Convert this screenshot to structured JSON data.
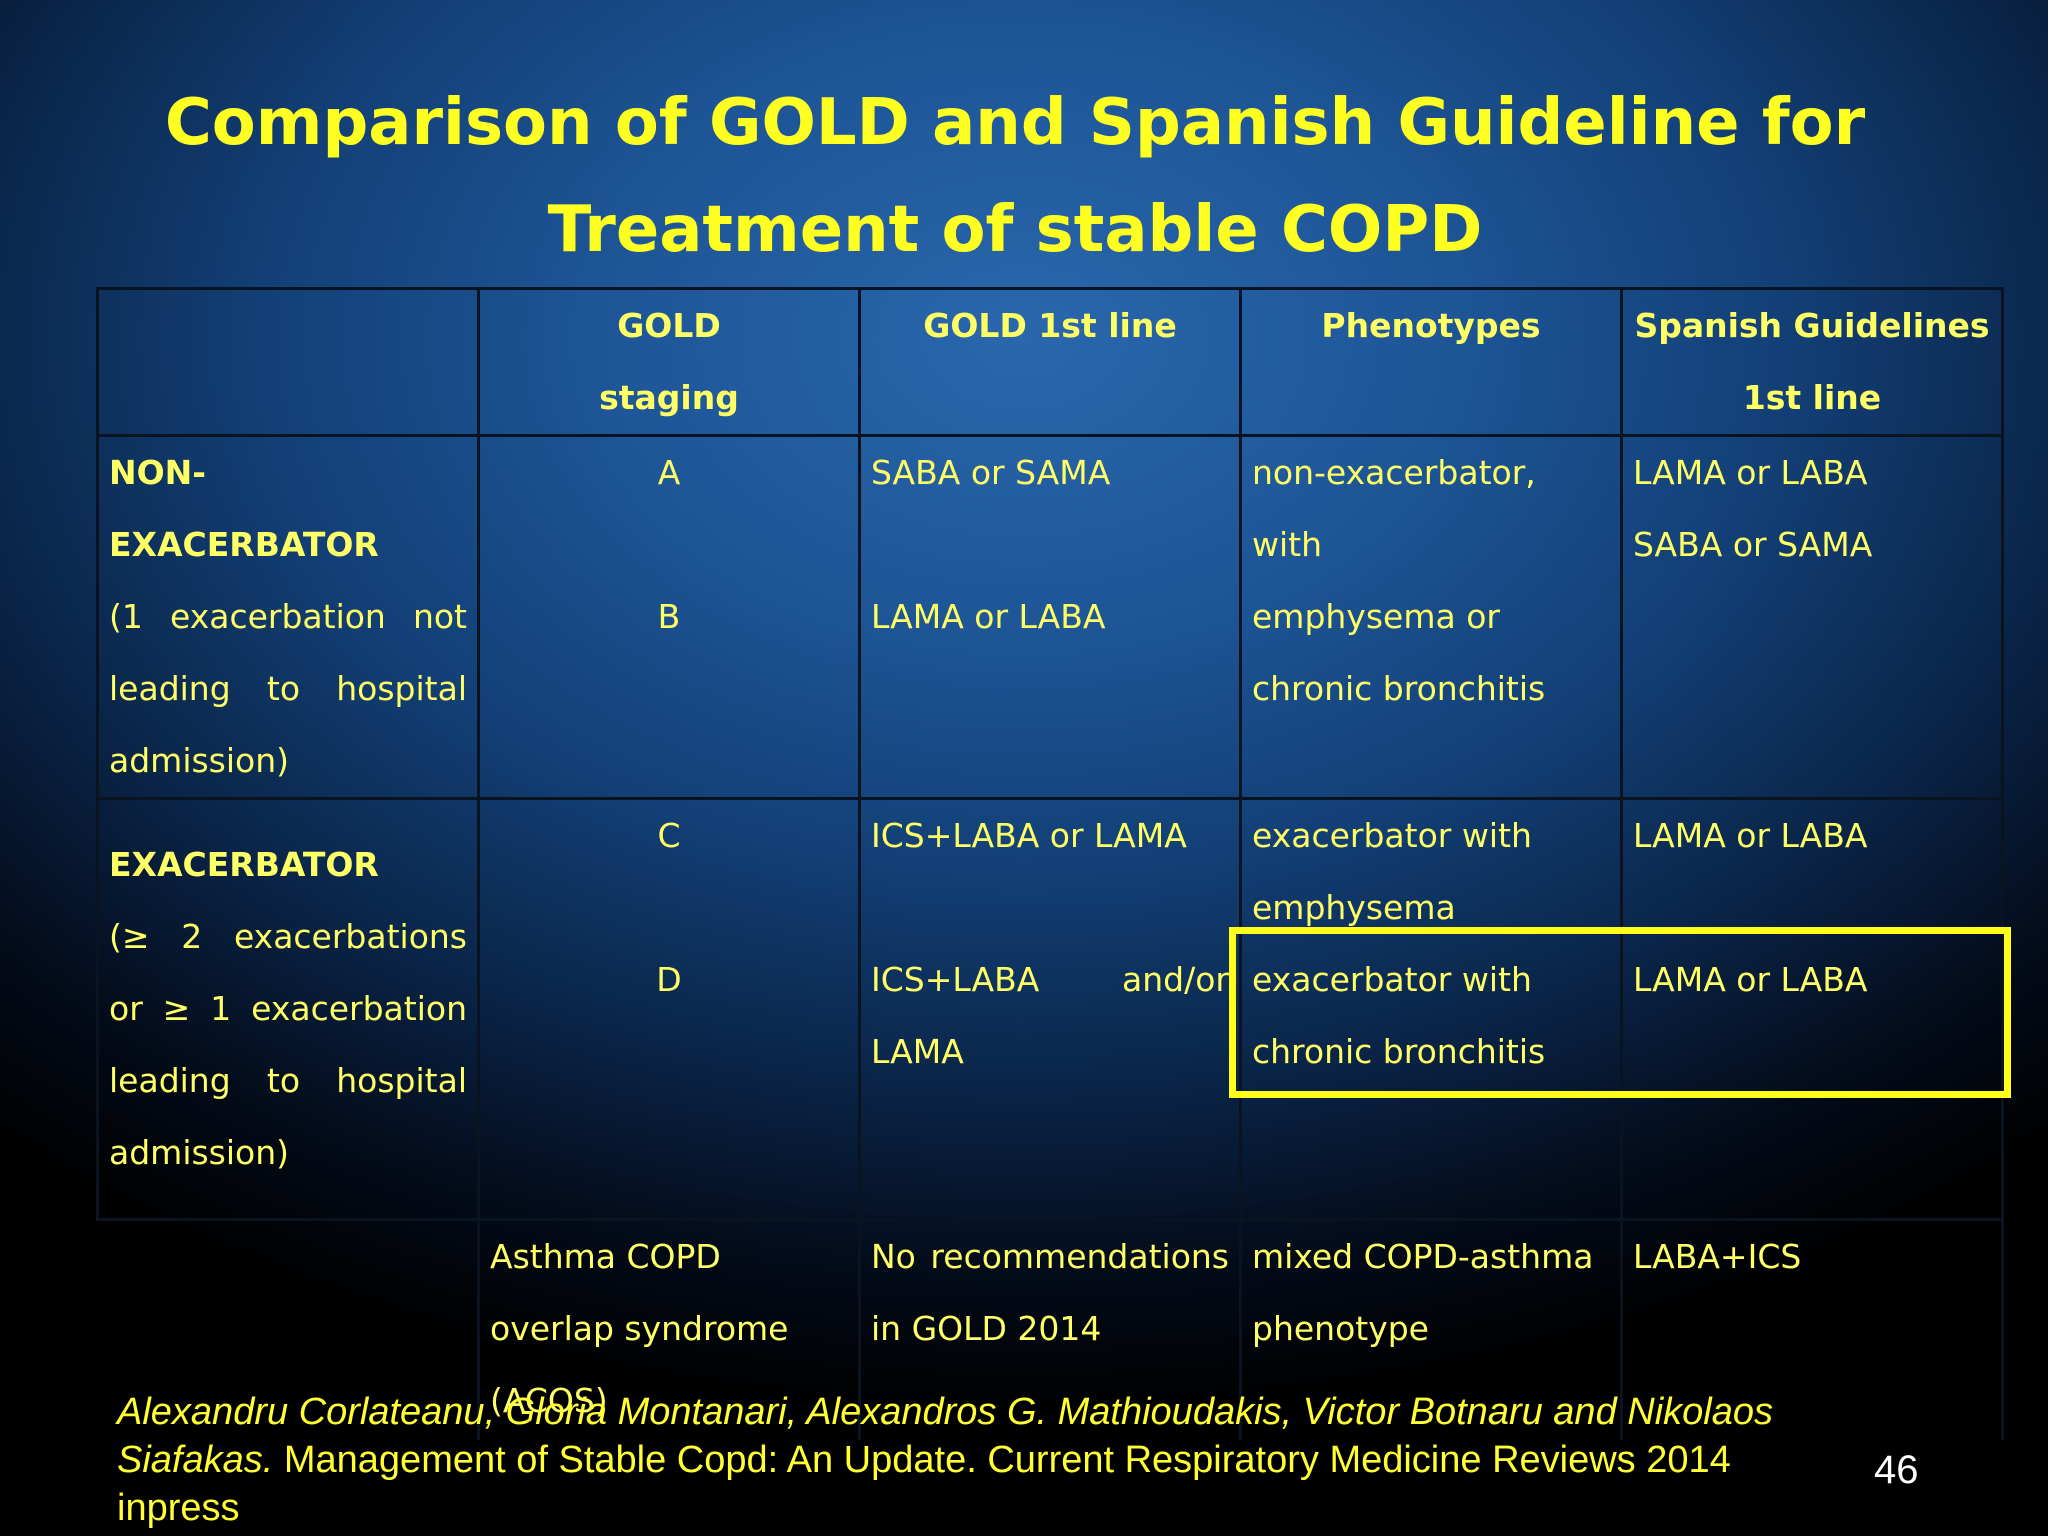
{
  "slide": {
    "title_line1": "Comparison of GOLD and Spanish Guideline for",
    "title_line2": "Treatment of stable COPD",
    "page_number": "46"
  },
  "table": {
    "headers": {
      "col2_line1": "GOLD",
      "col2_line2": "staging",
      "col3": "GOLD 1st line",
      "col4": "Phenotypes",
      "col5_line1": "Spanish Guidelines",
      "col5_line2": "1st line"
    },
    "non_exacerbator": {
      "label": "NON-EXACERBATOR",
      "description": "(1 exacerbation not leading to hospital admission)",
      "stage_a": "A",
      "stage_b": "B",
      "gold_a": "SABA or SAMA",
      "gold_b": "LAMA or LABA",
      "phenotype_line1": "non-exacerbator, with",
      "phenotype_line2": "emphysema or",
      "phenotype_line3": "chronic bronchitis",
      "spanish_line1": "LAMA or LABA",
      "spanish_line2": "SABA or SAMA"
    },
    "exacerbator": {
      "label": "EXACERBATOR",
      "description": "(≥ 2 exacerbations or ≥ 1 exacerbation leading to hospital admission)",
      "stage_c": "C",
      "stage_d": "D",
      "gold_c": "ICS+LABA or LAMA",
      "gold_d_part1": "ICS+LABA",
      "gold_d_part2": "and/or",
      "gold_d_part3": "LAMA",
      "phenotype_c_line1": "exacerbator with",
      "phenotype_c_line2": "emphysema",
      "phenotype_d_line1": "exacerbator with",
      "phenotype_d_line2": "chronic bronchitis",
      "spanish_c": "LAMA or LABA",
      "spanish_d": "LAMA or LABA"
    },
    "acos": {
      "staging": "Asthma COPD overlap syndrome (ACOS)",
      "gold": "No recommendations in GOLD 2014",
      "phenotype_line1": "mixed COPD-asthma",
      "phenotype_line2": "phenotype",
      "spanish": "LABA+ICS"
    }
  },
  "citation": {
    "authors": "Alexandru Corlateanu, Gloria Montanari, Alexandros G. Mathioudakis, Victor Botnaru and Nikolaos Siafakas.",
    "reference": " Management of Stable Copd: An Update. Current Respiratory Medicine Reviews 2014 inpress"
  },
  "colors": {
    "title": "#ffff22",
    "text": "#ffff66",
    "highlight": "#ffff1a"
  }
}
